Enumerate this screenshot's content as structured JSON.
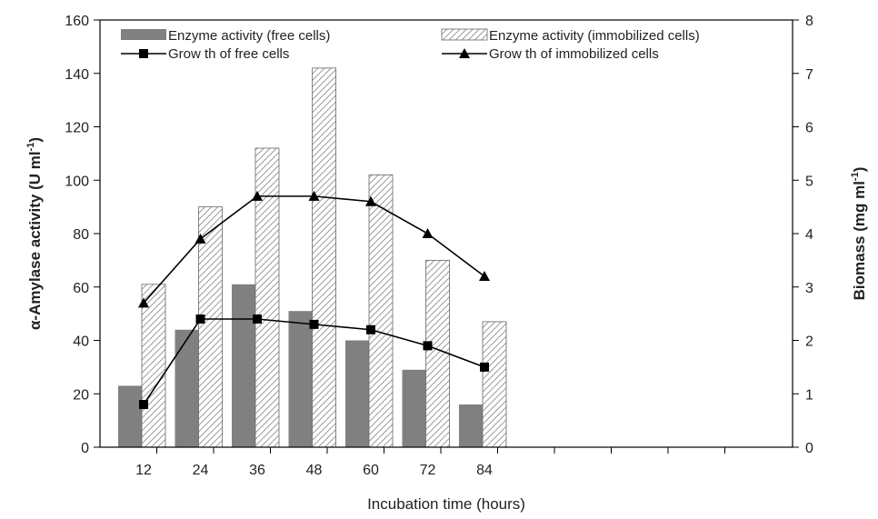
{
  "chart_data": {
    "type": "bar",
    "title": "",
    "xlabel": "Incubation time (hours)",
    "ylabel": "α-Amylase activity (U ml",
    "ylabel_sup": "-1",
    "ylabel_tail": ")",
    "y2label": "Biomass (mg ml",
    "y2label_sup": "-1",
    "y2label_tail": ")",
    "categories": [
      "12",
      "24",
      "36",
      "48",
      "60",
      "72",
      "84"
    ],
    "ylim": [
      0,
      160
    ],
    "y2lim": [
      0,
      8
    ],
    "yticks": [
      "0",
      "20",
      "40",
      "60",
      "80",
      "100",
      "120",
      "140",
      "160"
    ],
    "y2ticks": [
      "0",
      "1",
      "2",
      "3",
      "4",
      "5",
      "6",
      "7",
      "8"
    ],
    "legend_position": "top",
    "grid": false,
    "series": [
      {
        "name": "Enzyme activity (free cells)",
        "kind": "bar",
        "axis": "left",
        "color": "#808080",
        "values": [
          23,
          44,
          61,
          51,
          40,
          29,
          16
        ]
      },
      {
        "name": "Enzyme activity (immobilized cells)",
        "kind": "bar",
        "axis": "left",
        "pattern": "hatch",
        "values": [
          61,
          90,
          112,
          142,
          102,
          70,
          47
        ]
      },
      {
        "name": "Grow th of free cells",
        "kind": "line",
        "marker": "square",
        "axis": "right",
        "values": [
          0.8,
          2.4,
          2.4,
          2.3,
          2.2,
          1.9,
          1.5
        ]
      },
      {
        "name": "Grow th of immobilized cells",
        "kind": "line",
        "marker": "triangle",
        "axis": "right",
        "values": [
          2.7,
          3.9,
          4.7,
          4.7,
          4.6,
          4.0,
          3.2
        ]
      }
    ]
  }
}
